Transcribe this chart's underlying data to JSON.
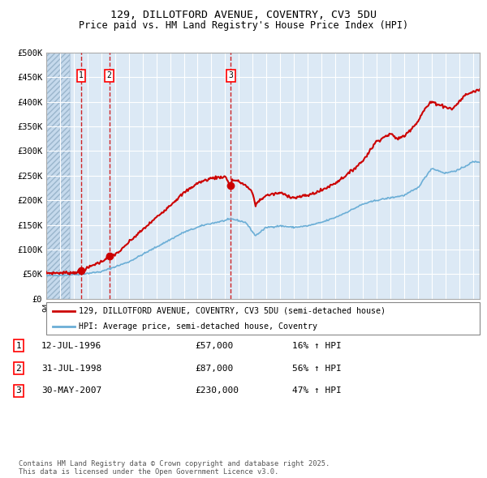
{
  "title": "129, DILLOTFORD AVENUE, COVENTRY, CV3 5DU",
  "subtitle": "Price paid vs. HM Land Registry's House Price Index (HPI)",
  "bg_color": "#dce9f5",
  "grid_color": "#ffffff",
  "red_line_color": "#cc0000",
  "blue_line_color": "#6baed6",
  "transactions": [
    {
      "date_num": 1996.54,
      "price": 57000,
      "label": "1"
    },
    {
      "date_num": 1998.58,
      "price": 87000,
      "label": "2"
    },
    {
      "date_num": 2007.41,
      "price": 230000,
      "label": "3"
    }
  ],
  "legend_entries": [
    "129, DILLOTFORD AVENUE, COVENTRY, CV3 5DU (semi-detached house)",
    "HPI: Average price, semi-detached house, Coventry"
  ],
  "table_data": [
    [
      "1",
      "12-JUL-1996",
      "£57,000",
      "16% ↑ HPI"
    ],
    [
      "2",
      "31-JUL-1998",
      "£87,000",
      "56% ↑ HPI"
    ],
    [
      "3",
      "30-MAY-2007",
      "£230,000",
      "47% ↑ HPI"
    ]
  ],
  "footer": "Contains HM Land Registry data © Crown copyright and database right 2025.\nThis data is licensed under the Open Government Licence v3.0.",
  "ylim": [
    0,
    500000
  ],
  "yticks": [
    0,
    50000,
    100000,
    150000,
    200000,
    250000,
    300000,
    350000,
    400000,
    450000,
    500000
  ],
  "ytick_labels": [
    "£0",
    "£50K",
    "£100K",
    "£150K",
    "£200K",
    "£250K",
    "£300K",
    "£350K",
    "£400K",
    "£450K",
    "£500K"
  ],
  "xlim_start": 1994.0,
  "xlim_end": 2025.5
}
